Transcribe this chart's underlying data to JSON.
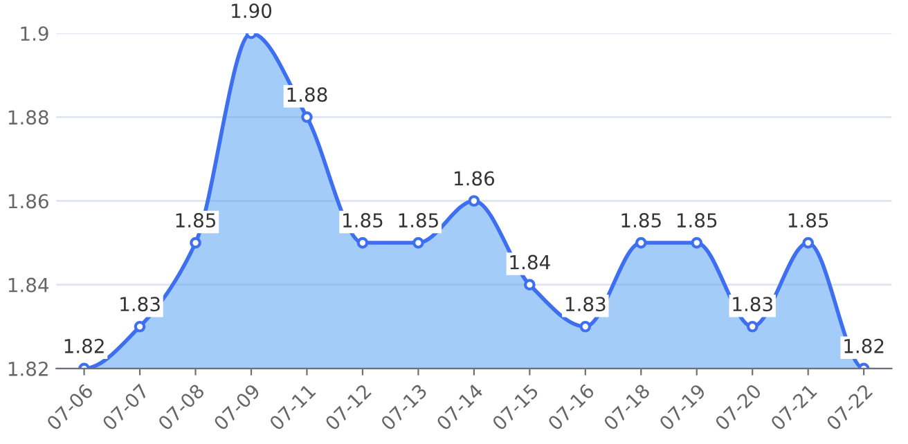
{
  "chart_data": {
    "type": "area",
    "categories": [
      "07-06",
      "07-07",
      "07-08",
      "07-09",
      "07-11",
      "07-12",
      "07-13",
      "07-14",
      "07-15",
      "07-16",
      "07-18",
      "07-19",
      "07-20",
      "07-21",
      "07-22"
    ],
    "series": [
      {
        "color": "#3d6ff0",
        "values": [
          1.82,
          1.83,
          1.85,
          1.9,
          1.88,
          1.85,
          1.85,
          1.86,
          1.84,
          1.83,
          1.85,
          1.85,
          1.83,
          1.85,
          1.82
        ],
        "value_labels": [
          "1.82",
          "1.83",
          "1.85",
          "1.90",
          "1.88",
          "1.85",
          "1.85",
          "1.86",
          "1.84",
          "1.83",
          "1.85",
          "1.85",
          "1.83",
          "1.85",
          "1.82"
        ]
      }
    ],
    "ylim": [
      1.82,
      1.9
    ],
    "yticks": [
      1.82,
      1.84,
      1.86,
      1.88,
      {
        "value": 1.9,
        "label": "1.9"
      }
    ],
    "grid": "y",
    "marker": "circle",
    "line_style": "solid",
    "legend": false
  }
}
